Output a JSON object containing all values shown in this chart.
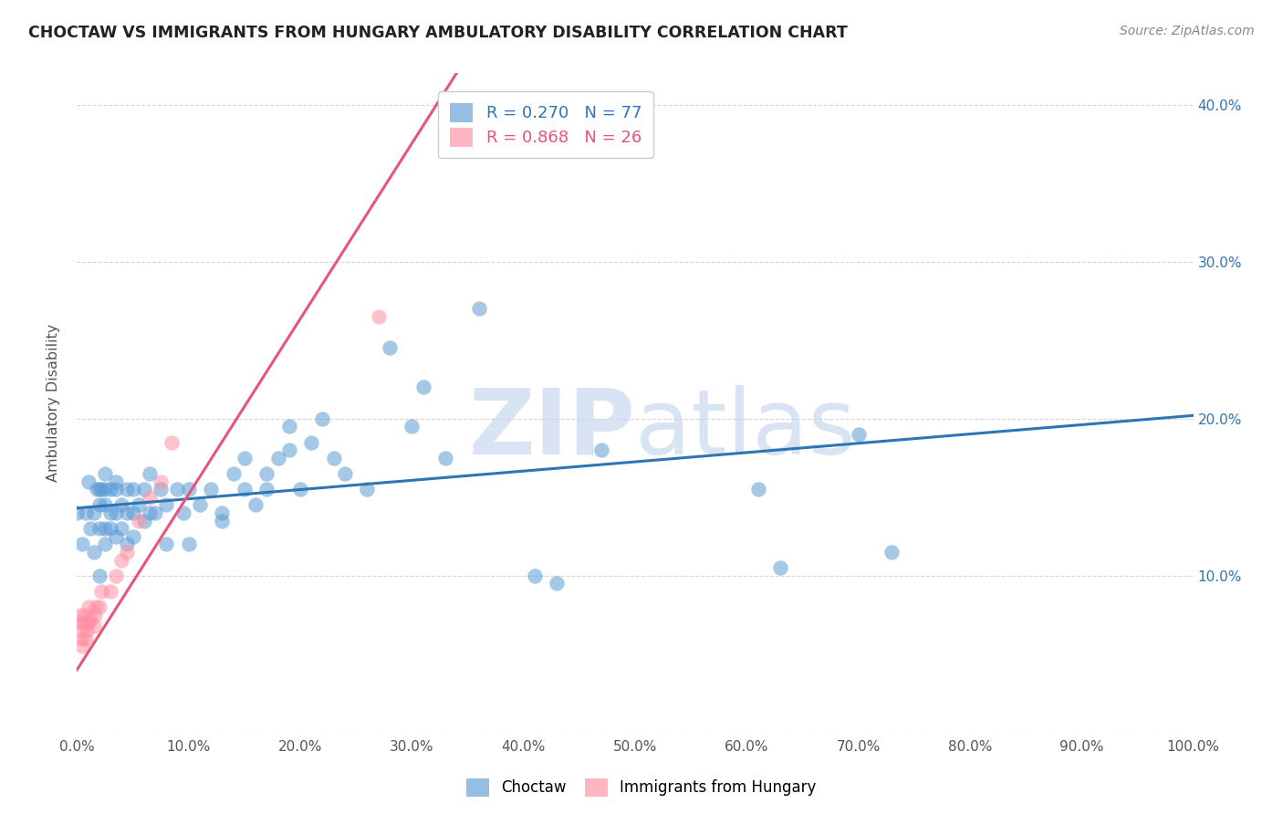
{
  "title": "CHOCTAW VS IMMIGRANTS FROM HUNGARY AMBULATORY DISABILITY CORRELATION CHART",
  "source": "Source: ZipAtlas.com",
  "ylabel": "Ambulatory Disability",
  "xlabel": "",
  "xlim": [
    0.0,
    1.0
  ],
  "ylim": [
    0.0,
    0.42
  ],
  "xticks": [
    0.0,
    0.1,
    0.2,
    0.3,
    0.4,
    0.5,
    0.6,
    0.7,
    0.8,
    0.9,
    1.0
  ],
  "yticks": [
    0.0,
    0.1,
    0.2,
    0.3,
    0.4
  ],
  "ytick_labels_right": [
    "",
    "10.0%",
    "20.0%",
    "30.0%",
    "40.0%"
  ],
  "xtick_labels": [
    "0.0%",
    "10.0%",
    "20.0%",
    "30.0%",
    "40.0%",
    "50.0%",
    "60.0%",
    "70.0%",
    "80.0%",
    "90.0%",
    "100.0%"
  ],
  "legend_label1": "R = 0.270   N = 77",
  "legend_label2": "R = 0.868   N = 26",
  "legend_entry1": "Choctaw",
  "legend_entry2": "Immigrants from Hungary",
  "blue_color": "#5B9BD5",
  "pink_color": "#FF8FA3",
  "blue_line_color": "#2E75B6",
  "pink_line_color": "#E8547A",
  "watermark_zip": "ZIP",
  "watermark_atlas": "atlas",
  "blue_scatter": [
    [
      0.0,
      0.14
    ],
    [
      0.005,
      0.12
    ],
    [
      0.008,
      0.14
    ],
    [
      0.01,
      0.16
    ],
    [
      0.012,
      0.13
    ],
    [
      0.015,
      0.115
    ],
    [
      0.015,
      0.14
    ],
    [
      0.018,
      0.155
    ],
    [
      0.02,
      0.155
    ],
    [
      0.02,
      0.1
    ],
    [
      0.02,
      0.13
    ],
    [
      0.02,
      0.145
    ],
    [
      0.022,
      0.155
    ],
    [
      0.025,
      0.12
    ],
    [
      0.025,
      0.13
    ],
    [
      0.025,
      0.145
    ],
    [
      0.025,
      0.155
    ],
    [
      0.025,
      0.165
    ],
    [
      0.03,
      0.13
    ],
    [
      0.03,
      0.14
    ],
    [
      0.03,
      0.155
    ],
    [
      0.035,
      0.125
    ],
    [
      0.035,
      0.14
    ],
    [
      0.035,
      0.155
    ],
    [
      0.035,
      0.16
    ],
    [
      0.04,
      0.13
    ],
    [
      0.04,
      0.145
    ],
    [
      0.045,
      0.12
    ],
    [
      0.045,
      0.14
    ],
    [
      0.045,
      0.155
    ],
    [
      0.05,
      0.125
    ],
    [
      0.05,
      0.14
    ],
    [
      0.05,
      0.155
    ],
    [
      0.055,
      0.145
    ],
    [
      0.06,
      0.135
    ],
    [
      0.06,
      0.155
    ],
    [
      0.065,
      0.14
    ],
    [
      0.065,
      0.165
    ],
    [
      0.07,
      0.14
    ],
    [
      0.075,
      0.155
    ],
    [
      0.08,
      0.12
    ],
    [
      0.08,
      0.145
    ],
    [
      0.09,
      0.155
    ],
    [
      0.095,
      0.14
    ],
    [
      0.1,
      0.155
    ],
    [
      0.1,
      0.12
    ],
    [
      0.11,
      0.145
    ],
    [
      0.12,
      0.155
    ],
    [
      0.13,
      0.135
    ],
    [
      0.13,
      0.14
    ],
    [
      0.14,
      0.165
    ],
    [
      0.15,
      0.155
    ],
    [
      0.15,
      0.175
    ],
    [
      0.16,
      0.145
    ],
    [
      0.17,
      0.155
    ],
    [
      0.17,
      0.165
    ],
    [
      0.18,
      0.175
    ],
    [
      0.19,
      0.18
    ],
    [
      0.19,
      0.195
    ],
    [
      0.2,
      0.155
    ],
    [
      0.21,
      0.185
    ],
    [
      0.22,
      0.2
    ],
    [
      0.23,
      0.175
    ],
    [
      0.24,
      0.165
    ],
    [
      0.26,
      0.155
    ],
    [
      0.28,
      0.245
    ],
    [
      0.3,
      0.195
    ],
    [
      0.31,
      0.22
    ],
    [
      0.33,
      0.175
    ],
    [
      0.36,
      0.27
    ],
    [
      0.41,
      0.1
    ],
    [
      0.43,
      0.095
    ],
    [
      0.47,
      0.18
    ],
    [
      0.61,
      0.155
    ],
    [
      0.63,
      0.105
    ],
    [
      0.7,
      0.19
    ],
    [
      0.73,
      0.115
    ]
  ],
  "pink_scatter": [
    [
      0.002,
      0.07
    ],
    [
      0.003,
      0.075
    ],
    [
      0.005,
      0.055
    ],
    [
      0.005,
      0.06
    ],
    [
      0.005,
      0.065
    ],
    [
      0.006,
      0.07
    ],
    [
      0.007,
      0.075
    ],
    [
      0.008,
      0.06
    ],
    [
      0.009,
      0.065
    ],
    [
      0.01,
      0.07
    ],
    [
      0.01,
      0.08
    ],
    [
      0.012,
      0.072
    ],
    [
      0.015,
      0.068
    ],
    [
      0.016,
      0.075
    ],
    [
      0.017,
      0.08
    ],
    [
      0.02,
      0.08
    ],
    [
      0.022,
      0.09
    ],
    [
      0.03,
      0.09
    ],
    [
      0.035,
      0.1
    ],
    [
      0.04,
      0.11
    ],
    [
      0.045,
      0.115
    ],
    [
      0.055,
      0.135
    ],
    [
      0.065,
      0.15
    ],
    [
      0.075,
      0.16
    ],
    [
      0.085,
      0.185
    ],
    [
      0.27,
      0.265
    ]
  ],
  "blue_trendline_x": [
    0.0,
    1.0
  ],
  "blue_trendline_y": [
    0.143,
    0.202
  ],
  "pink_trendline_x": [
    0.0,
    0.34
  ],
  "pink_trendline_y": [
    0.04,
    0.42
  ]
}
